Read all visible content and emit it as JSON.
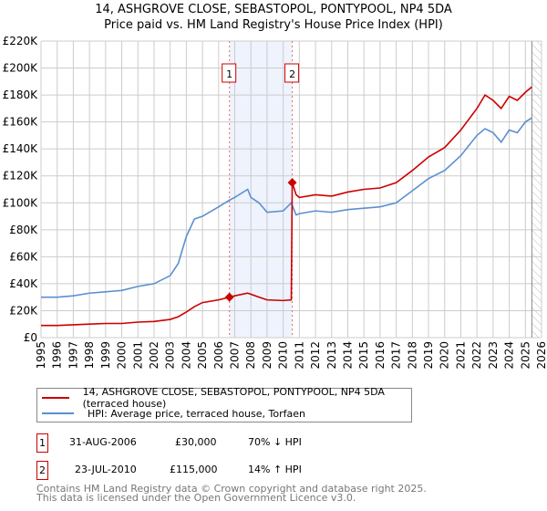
{
  "chart_data": {
    "type": "line",
    "title": "14, ASHGROVE CLOSE, SEBASTOPOL, PONTYPOOL, NP4 5DA",
    "subtitle": "Price paid vs. HM Land Registry's House Price Index (HPI)",
    "xlim": [
      1995,
      2026
    ],
    "ylim": [
      0,
      220000
    ],
    "yticks": [
      0,
      20000,
      40000,
      60000,
      80000,
      100000,
      120000,
      140000,
      160000,
      180000,
      200000,
      220000
    ],
    "ytick_labels": [
      "£0",
      "£20K",
      "£40K",
      "£60K",
      "£80K",
      "£100K",
      "£120K",
      "£140K",
      "£160K",
      "£180K",
      "£200K",
      "£220K"
    ],
    "xticks": [
      "1995",
      "1996",
      "1997",
      "1998",
      "1999",
      "2000",
      "2001",
      "2002",
      "2003",
      "2004",
      "2005",
      "2006",
      "2007",
      "2008",
      "2009",
      "2010",
      "2011",
      "2012",
      "2013",
      "2014",
      "2015",
      "2016",
      "2017",
      "2018",
      "2019",
      "2020",
      "2021",
      "2022",
      "2023",
      "2024",
      "2025",
      "2026"
    ],
    "grid": true,
    "shaded_period": [
      2006.67,
      2010.56
    ],
    "forecast_hatch_from": 2025.4,
    "series": [
      {
        "name": "14, ASHGROVE CLOSE, SEBASTOPOL, PONTYPOOL, NP4 5DA (terraced house)",
        "color": "#cc0000",
        "x": [
          1995,
          1996,
          1997,
          1998,
          1999,
          2000,
          2001,
          2002,
          2003,
          2003.5,
          2004,
          2004.5,
          2005,
          2006,
          2006.67,
          2007,
          2007.8,
          2008.5,
          2009,
          2010,
          2010.5,
          2010.56,
          2010.8,
          2011,
          2012,
          2013,
          2014,
          2015,
          2016,
          2017,
          2018,
          2019,
          2020,
          2021,
          2022,
          2022.5,
          2023,
          2023.5,
          2024,
          2024.5,
          2025,
          2025.4
        ],
        "y": [
          9000,
          9000,
          9500,
          10000,
          10500,
          10500,
          11500,
          12000,
          13500,
          15500,
          19000,
          23000,
          26000,
          28000,
          30000,
          31000,
          33000,
          30000,
          28000,
          27500,
          28000,
          115000,
          106000,
          104000,
          106000,
          105000,
          108000,
          110000,
          111000,
          115000,
          124000,
          134000,
          141000,
          154000,
          170000,
          180000,
          176000,
          170000,
          179000,
          176000,
          182000,
          186000
        ]
      },
      {
        "name": "HPI: Average price, terraced house, Torfaen",
        "color": "#5b8fd0",
        "x": [
          1995,
          1996,
          1997,
          1998,
          1999,
          2000,
          2001,
          2002,
          2003,
          2003.5,
          2004,
          2004.5,
          2005,
          2006,
          2006.67,
          2007,
          2007.8,
          2008,
          2008.5,
          2009,
          2010,
          2010.5,
          2010.8,
          2011,
          2012,
          2013,
          2014,
          2015,
          2016,
          2017,
          2018,
          2019,
          2020,
          2021,
          2022,
          2022.5,
          2023,
          2023.5,
          2024,
          2024.5,
          2025,
          2025.4
        ],
        "y": [
          30000,
          30000,
          31000,
          33000,
          34000,
          35000,
          38000,
          40000,
          46000,
          55000,
          75000,
          88000,
          90000,
          97000,
          102000,
          104000,
          110000,
          104000,
          100000,
          93000,
          94000,
          100000,
          91000,
          92000,
          94000,
          93000,
          95000,
          96000,
          97000,
          100000,
          109000,
          118000,
          124000,
          135000,
          150000,
          155000,
          152000,
          145000,
          154000,
          152000,
          160000,
          163000
        ]
      }
    ],
    "sales": [
      {
        "marker": "1",
        "x": 2006.67,
        "y": 30000,
        "date": "31-AUG-2006",
        "price": "£30,000",
        "hpi": "70% ↓ HPI"
      },
      {
        "marker": "2",
        "x": 2010.56,
        "y": 115000,
        "date": "23-JUL-2010",
        "price": "£115,000",
        "hpi": "14% ↑ HPI"
      }
    ]
  },
  "footer": {
    "line1": "Contains HM Land Registry data © Crown copyright and database right 2025.",
    "line2": "This data is licensed under the Open Government Licence v3.0."
  }
}
